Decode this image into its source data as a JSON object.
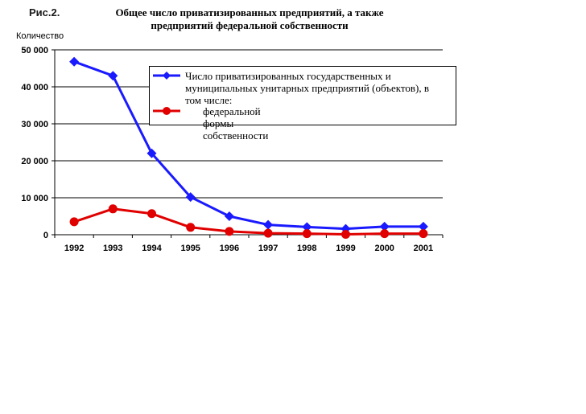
{
  "figure": {
    "label": "Рис.2.",
    "title_line1": "Общее число приватизированных предприятий, а также",
    "title_line2": "предприятий федеральной собственности"
  },
  "chart_data": {
    "type": "line",
    "ylabel": "Количество",
    "x": [
      "1992",
      "1993",
      "1994",
      "1995",
      "1996",
      "1997",
      "1998",
      "1999",
      "2000",
      "2001"
    ],
    "ylim": [
      0,
      50000
    ],
    "yticks": [
      0,
      10000,
      20000,
      30000,
      40000,
      50000
    ],
    "ytick_labels": [
      "0",
      "10 000",
      "20 000",
      "30 000",
      "40 000",
      "50 000"
    ],
    "grid": true,
    "legend_position": "top-right",
    "series": [
      {
        "name": "Число приватизированных государственных и муниципальных унитарных предприятий (объектов), в том числе:",
        "color": "#1a1aff",
        "marker": "diamond",
        "values": [
          46800,
          43000,
          22000,
          10200,
          5000,
          2700,
          2100,
          1600,
          2200,
          2200
        ]
      },
      {
        "name": "федеральной формы собственности",
        "color": "#e00000",
        "marker": "circle",
        "values": [
          3500,
          7000,
          5700,
          2000,
          900,
          400,
          300,
          100,
          300,
          300
        ]
      }
    ]
  },
  "legend": {
    "entry1_line1": "Число приватизированных государственных и",
    "entry1_line2": "муниципальных унитарных предприятий (объектов), в",
    "entry1_line3": "том числе:",
    "entry2": "федеральной формы собственности"
  }
}
